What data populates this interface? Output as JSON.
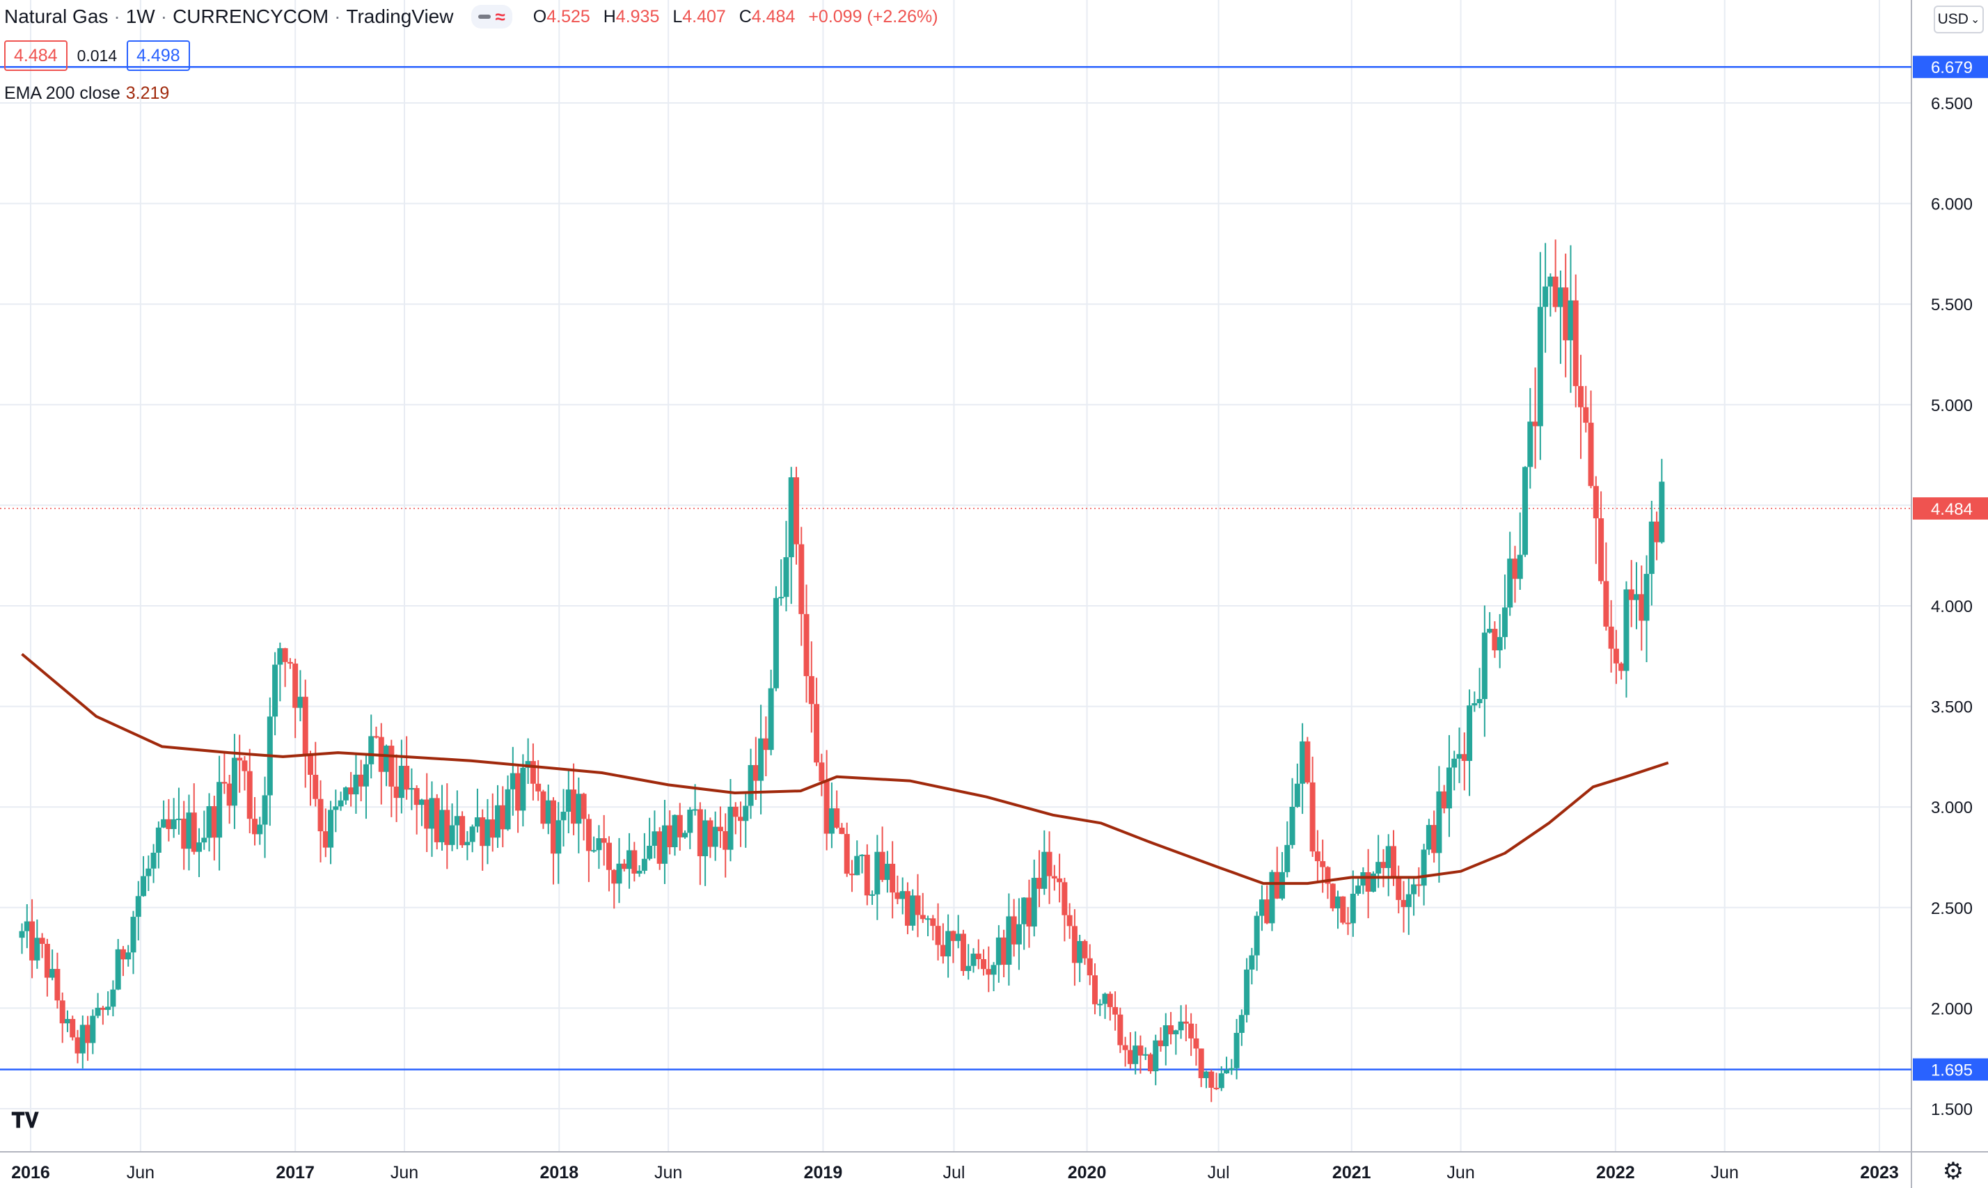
{
  "header": {
    "symbol": "Natural Gas",
    "interval": "1W",
    "exchange": "CURRENCYCOM",
    "source": "TradingView",
    "open_label": "O",
    "open": "4.525",
    "high_label": "H",
    "high": "4.935",
    "low_label": "L",
    "low": "4.407",
    "close_label": "C",
    "close": "4.484",
    "change": "+0.099 (+2.26%)"
  },
  "quote": {
    "bid": "4.484",
    "spread": "0.014",
    "ask": "4.498"
  },
  "indicator": {
    "label": "EMA 200 close",
    "value": "3.219",
    "color": "#a0290c"
  },
  "currency_button": "USD",
  "colors": {
    "up": "#26a69a",
    "down": "#ef5350",
    "ema": "#a0290c",
    "hline": "#2962ff",
    "grid": "#e8ecf3"
  },
  "chart_data": {
    "type": "candlestick",
    "title": "Natural Gas · 1W · CURRENCYCOM",
    "y_axis_side": "right",
    "ylim": [
      1.29,
      6.97
    ],
    "y_ticks": [
      "1.500",
      "2.000",
      "2.500",
      "3.000",
      "3.500",
      "4.000",
      "4.500",
      "5.000",
      "5.500",
      "6.000",
      "6.500"
    ],
    "x_ticks": [
      {
        "label": "2016",
        "date": "2016-01-01"
      },
      {
        "label": "Jun",
        "date": "2016-06-01"
      },
      {
        "label": "2017",
        "date": "2017-01-01"
      },
      {
        "label": "Jun",
        "date": "2017-06-01"
      },
      {
        "label": "2018",
        "date": "2018-01-01"
      },
      {
        "label": "Jun",
        "date": "2018-06-01"
      },
      {
        "label": "2019",
        "date": "2019-01-01"
      },
      {
        "label": "Jul",
        "date": "2019-07-01"
      },
      {
        "label": "2020",
        "date": "2020-01-01"
      },
      {
        "label": "Jul",
        "date": "2020-07-01"
      },
      {
        "label": "2021",
        "date": "2021-01-01"
      },
      {
        "label": "Jun",
        "date": "2021-06-01"
      },
      {
        "label": "2022",
        "date": "2022-01-01"
      },
      {
        "label": "Jun",
        "date": "2022-06-01"
      },
      {
        "label": "2023",
        "date": "2023-01-01"
      }
    ],
    "horizontal_lines": [
      {
        "value": 6.679,
        "label": "6.679",
        "color": "#2962ff"
      },
      {
        "value": 1.695,
        "label": "1.695",
        "color": "#2962ff"
      }
    ],
    "last_price": {
      "value": 4.484,
      "label": "4.484",
      "color": "#ef5350"
    },
    "close_series_keypoints": [
      [
        "2015-12-20",
        2.35
      ],
      [
        "2016-01-20",
        2.25
      ],
      [
        "2016-03-01",
        1.78
      ],
      [
        "2016-04-15",
        2.0
      ],
      [
        "2016-06-01",
        2.6
      ],
      [
        "2016-07-05",
        2.85
      ],
      [
        "2016-09-01",
        2.9
      ],
      [
        "2016-10-15",
        3.25
      ],
      [
        "2016-11-10",
        2.85
      ],
      [
        "2016-12-10",
        3.8
      ],
      [
        "2016-12-25",
        3.75
      ],
      [
        "2017-02-10",
        2.85
      ],
      [
        "2017-04-20",
        3.25
      ],
      [
        "2017-06-01",
        3.05
      ],
      [
        "2017-08-01",
        2.85
      ],
      [
        "2017-10-01",
        2.95
      ],
      [
        "2017-11-20",
        3.1
      ],
      [
        "2018-01-01",
        2.85
      ],
      [
        "2018-01-25",
        3.05
      ],
      [
        "2018-03-01",
        2.7
      ],
      [
        "2018-05-01",
        2.8
      ],
      [
        "2018-06-15",
        2.9
      ],
      [
        "2018-08-01",
        2.85
      ],
      [
        "2018-09-15",
        3.0
      ],
      [
        "2018-10-10",
        3.25
      ],
      [
        "2018-11-14",
        4.55
      ],
      [
        "2018-11-28",
        4.3
      ],
      [
        "2018-12-10",
        3.6
      ],
      [
        "2019-01-01",
        3.05
      ],
      [
        "2019-02-01",
        2.7
      ],
      [
        "2019-04-01",
        2.65
      ],
      [
        "2019-06-01",
        2.35
      ],
      [
        "2019-07-15",
        2.25
      ],
      [
        "2019-08-15",
        2.2
      ],
      [
        "2019-10-15",
        2.5
      ],
      [
        "2019-11-05",
        2.75
      ],
      [
        "2019-12-15",
        2.3
      ],
      [
        "2020-02-15",
        1.85
      ],
      [
        "2020-03-20",
        1.7
      ],
      [
        "2020-04-15",
        1.85
      ],
      [
        "2020-05-01",
        1.95
      ],
      [
        "2020-06-25",
        1.62
      ],
      [
        "2020-07-20",
        1.75
      ],
      [
        "2020-08-15",
        2.3
      ],
      [
        "2020-09-10",
        2.55
      ],
      [
        "2020-10-05",
        2.8
      ],
      [
        "2020-10-25",
        3.3
      ],
      [
        "2020-11-10",
        2.75
      ],
      [
        "2020-12-01",
        2.6
      ],
      [
        "2021-01-01",
        2.5
      ],
      [
        "2021-02-10",
        2.8
      ],
      [
        "2021-03-10",
        2.6
      ],
      [
        "2021-04-01",
        2.65
      ],
      [
        "2021-05-01",
        2.95
      ],
      [
        "2021-06-01",
        3.3
      ],
      [
        "2021-07-01",
        3.75
      ],
      [
        "2021-08-01",
        4.05
      ],
      [
        "2021-09-01",
        4.6
      ],
      [
        "2021-09-20",
        5.3
      ],
      [
        "2021-10-10",
        5.6
      ],
      [
        "2021-10-30",
        5.45
      ],
      [
        "2021-11-15",
        4.9
      ],
      [
        "2021-11-30",
        4.6
      ],
      [
        "2021-12-15",
        3.8
      ],
      [
        "2022-01-05",
        3.75
      ],
      [
        "2022-01-25",
        4.05
      ],
      [
        "2022-02-10",
        4.1
      ],
      [
        "2022-02-25",
        4.5
      ],
      [
        "2022-03-10",
        4.48
      ]
    ],
    "ema200": [
      [
        "2015-12-20",
        3.76
      ],
      [
        "2016-04-01",
        3.45
      ],
      [
        "2016-07-01",
        3.3
      ],
      [
        "2016-10-01",
        3.27
      ],
      [
        "2016-12-15",
        3.25
      ],
      [
        "2017-03-01",
        3.27
      ],
      [
        "2017-06-01",
        3.25
      ],
      [
        "2017-09-01",
        3.23
      ],
      [
        "2017-12-01",
        3.2
      ],
      [
        "2018-03-01",
        3.17
      ],
      [
        "2018-06-01",
        3.11
      ],
      [
        "2018-09-01",
        3.07
      ],
      [
        "2018-12-01",
        3.08
      ],
      [
        "2019-01-20",
        3.15
      ],
      [
        "2019-05-01",
        3.13
      ],
      [
        "2019-08-15",
        3.05
      ],
      [
        "2019-11-15",
        2.96
      ],
      [
        "2020-01-20",
        2.92
      ],
      [
        "2020-04-01",
        2.82
      ],
      [
        "2020-07-01",
        2.7
      ],
      [
        "2020-09-01",
        2.62
      ],
      [
        "2020-11-01",
        2.62
      ],
      [
        "2021-01-01",
        2.65
      ],
      [
        "2021-04-01",
        2.65
      ],
      [
        "2021-06-01",
        2.68
      ],
      [
        "2021-08-01",
        2.77
      ],
      [
        "2021-10-01",
        2.92
      ],
      [
        "2021-12-01",
        3.1
      ],
      [
        "2022-01-15",
        3.15
      ],
      [
        "2022-03-15",
        3.22
      ]
    ]
  }
}
